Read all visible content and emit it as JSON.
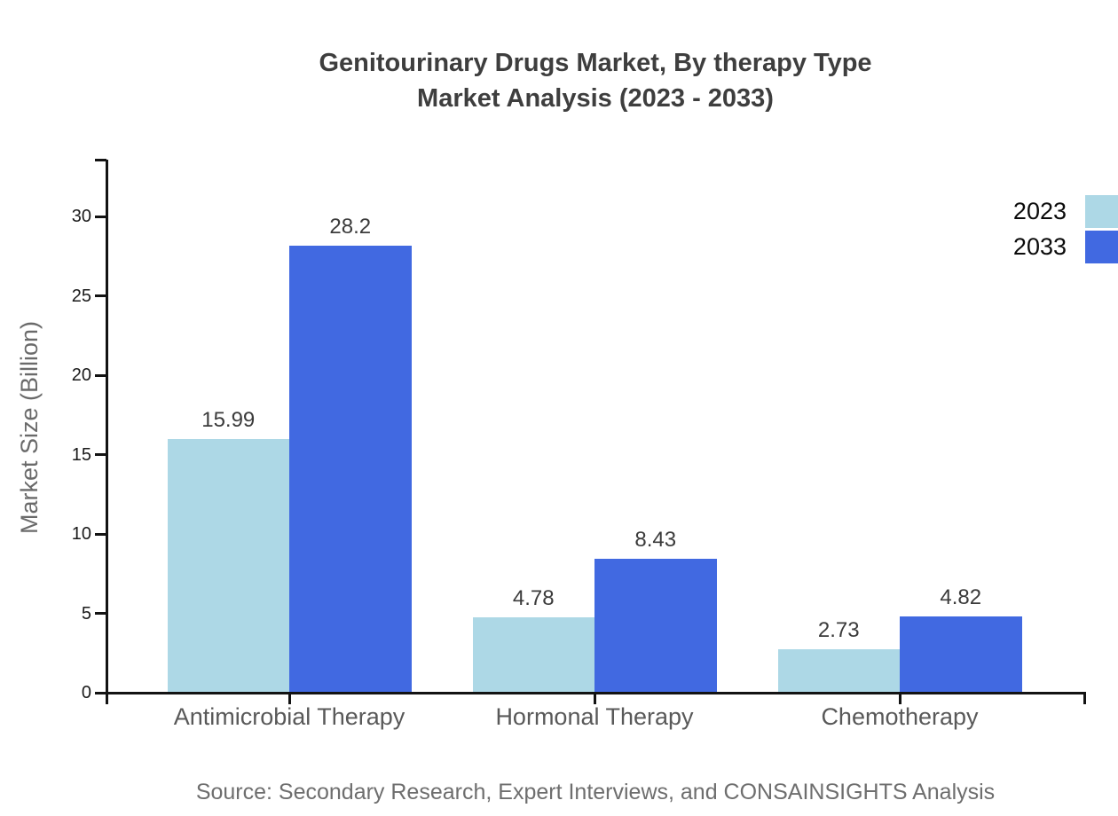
{
  "page": {
    "background": "#ffffff"
  },
  "chart": {
    "title_line1": "Genitourinary Drugs Market, By therapy Type",
    "title_line2": "Market Analysis (2023 - 2033)",
    "ylabel": "Market Size (Billion)",
    "source": "Source: Secondary Research, Expert Interviews, and CONSAINSIGHTS Analysis"
  },
  "chart_data": {
    "type": "bar",
    "title": "Genitourinary Drugs Market, By therapy Type Market Analysis (2023 - 2033)",
    "categories": [
      "Antimicrobial Therapy",
      "Hormonal Therapy",
      "Chemotherapy"
    ],
    "series": [
      {
        "name": "2023",
        "color": "#add8e6",
        "values": [
          15.99,
          4.78,
          2.73
        ]
      },
      {
        "name": "2033",
        "color": "#4169e1",
        "values": [
          28.2,
          8.43,
          4.82
        ]
      }
    ],
    "xlabel": "",
    "ylabel": "Market Size (Billion)",
    "ylim": [
      0,
      33.6
    ],
    "yticks": [
      0,
      5,
      10,
      15,
      20,
      25,
      30
    ],
    "grid": false,
    "legend_position": "top-right",
    "bar_value_labels": true,
    "axis_color": "#131313",
    "source": "Source: Secondary Research, Expert Interviews, and CONSAINSIGHTS Analysis"
  }
}
